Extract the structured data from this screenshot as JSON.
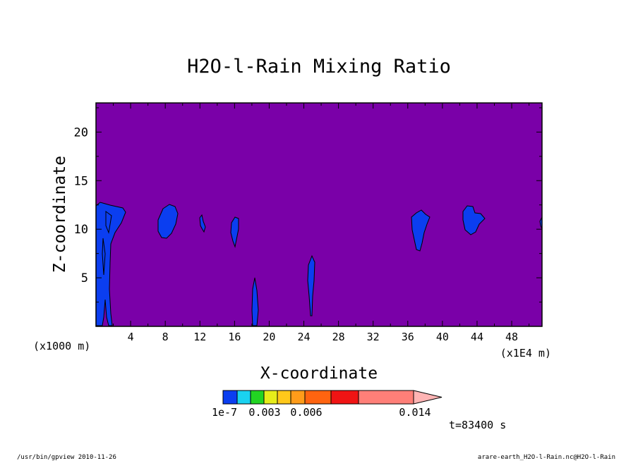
{
  "chart_data": {
    "type": "heatmap",
    "title": "H2O-l-Rain Mixing Ratio",
    "xlabel": "X-coordinate",
    "ylabel": "Z-coordinate",
    "x_units_left": "(x1000 m)",
    "x_units_right": "(x1E4 m)",
    "xlim": [
      0,
      51.5
    ],
    "ylim": [
      0,
      23
    ],
    "x_ticks": [
      4,
      8,
      12,
      16,
      20,
      24,
      28,
      32,
      36,
      40,
      44,
      48
    ],
    "x_tick_labels": [
      "4",
      "8",
      "12",
      "16",
      "20",
      "24",
      "28",
      "32",
      "36",
      "40",
      "44",
      "48"
    ],
    "y_ticks": [
      5,
      10,
      15,
      20
    ],
    "y_tick_labels": [
      "5",
      "10",
      "15",
      "20"
    ],
    "background_color": "#7a00a8",
    "colorbar": {
      "colors": [
        "#0b3ef0",
        "#1ad2f0",
        "#22d422",
        "#e6ec1a",
        "#ffc81a",
        "#ff9c1a",
        "#ff6410",
        "#f01414",
        "#ff7f78"
      ],
      "extend_color": "#ffb4b4",
      "labels": [
        "1e-7",
        "0.003",
        "0.006",
        "0.014"
      ]
    },
    "time_label": "t=83400 s",
    "features": [
      {
        "name": "left-column",
        "level": 1
      },
      {
        "name": "blob-8",
        "level": 1
      },
      {
        "name": "blob-12",
        "level": 1
      },
      {
        "name": "blob-16",
        "level": 1
      },
      {
        "name": "column-18",
        "level": 1
      },
      {
        "name": "column-25",
        "level": 1
      },
      {
        "name": "blob-37",
        "level": 1
      },
      {
        "name": "blob-43",
        "level": 1
      }
    ]
  },
  "footer": {
    "left": "/usr/bin/gpview  2010-11-26",
    "right": "arare-earth_H2O-l-Rain.nc@H2O-l-Rain"
  }
}
